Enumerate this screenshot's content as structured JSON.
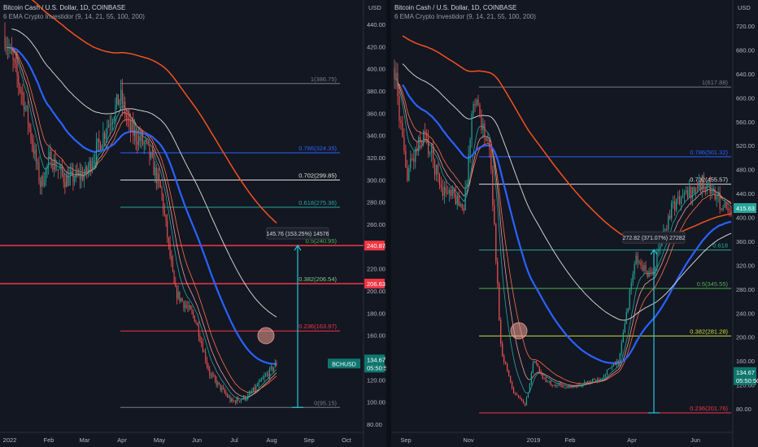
{
  "charts": [
    {
      "title": "Bitcoin Cash / U.S. Dollar, 1D, COINBASE",
      "indicator": "6 EMA Crypto Investidor (9, 14, 21, 55, 100, 200)",
      "currency": "USD",
      "y_ticks": [
        "440.00",
        "420.00",
        "400.00",
        "380.00",
        "360.00",
        "340.00",
        "320.00",
        "300.00",
        "280.00",
        "260.00",
        "240.00",
        "220.00",
        "200.00",
        "180.00",
        "160.00",
        "140.00",
        "120.00",
        "100.00",
        "80.00"
      ],
      "x_ticks": [
        "2022",
        "Feb",
        "Mar",
        "Apr",
        "May",
        "Jun",
        "Jul",
        "Aug",
        "Sep",
        "Oct"
      ],
      "fib_labels": [
        "1(386.75)",
        "0.786(324.35)",
        "0.702(299.85)",
        "0.618(275.36)",
        "0.5(240.95)",
        "0.382(206.54)",
        "0.236(163.97)",
        "0(95.15)"
      ],
      "price_badges": [
        "240.87",
        "206.63"
      ],
      "symbol_badge": "BCHUSD",
      "last_price": "134.67",
      "countdown": "05:50:56",
      "measure_label": "145.76 (153.25%) 14576"
    },
    {
      "title": "Bitcoin Cash / U.S. Dollar, 1D, COINBASE",
      "indicator": "6 EMA Crypto Investidor (9, 14, 21, 55, 100, 200)",
      "currency": "USD",
      "y_ticks": [
        "720.00",
        "680.00",
        "640.00",
        "600.00",
        "560.00",
        "520.00",
        "480.00",
        "440.00",
        "400.00",
        "360.00",
        "320.00",
        "280.00",
        "240.00",
        "200.00",
        "160.00",
        "120.00",
        "80.00"
      ],
      "x_ticks": [
        "Sep",
        "Nov",
        "2019",
        "Feb",
        "Apr",
        "Jun"
      ],
      "fib_labels": [
        "1(617.88)",
        "0.786(501.32)",
        "0.702(455.57)",
        "0.618",
        "0.5(345.55)",
        "0.382(281.28)",
        "0.236(201.76)",
        "0(73.22)"
      ],
      "price_badges": [
        "415.63"
      ],
      "last_price": "134.67",
      "countdown": "05:50:56",
      "measure_label": "272.82 (371.07%) 27282"
    }
  ],
  "chart_data": [
    {
      "type": "candlestick",
      "title": "Bitcoin Cash / U.S. Dollar, 1D, COINBASE",
      "ylim": [
        80,
        450
      ],
      "x_categories": [
        "2022",
        "Feb",
        "Mar",
        "Apr",
        "May",
        "Jun",
        "Jul",
        "Aug",
        "Sep",
        "Oct"
      ],
      "approx_close_path": [
        {
          "x": "2022",
          "y": 430
        },
        {
          "x": "Jan mid",
          "y": 370
        },
        {
          "x": "Jan end",
          "y": 295
        },
        {
          "x": "Feb",
          "y": 320
        },
        {
          "x": "Feb mid",
          "y": 300
        },
        {
          "x": "Mar",
          "y": 305
        },
        {
          "x": "Mar end",
          "y": 375
        },
        {
          "x": "Apr",
          "y": 345
        },
        {
          "x": "Apr mid",
          "y": 330
        },
        {
          "x": "May",
          "y": 290
        },
        {
          "x": "May mid",
          "y": 200
        },
        {
          "x": "Jun",
          "y": 175
        },
        {
          "x": "Jun mid",
          "y": 125
        },
        {
          "x": "Jul",
          "y": 100
        },
        {
          "x": "Jul mid",
          "y": 105
        },
        {
          "x": "Aug",
          "y": 134.67
        }
      ],
      "fibonacci": [
        {
          "level": "1",
          "price": 386.75
        },
        {
          "level": "0.786",
          "price": 324.35
        },
        {
          "level": "0.702",
          "price": 299.85
        },
        {
          "level": "0.618",
          "price": 275.36
        },
        {
          "level": "0.5",
          "price": 240.95
        },
        {
          "level": "0.382",
          "price": 206.54
        },
        {
          "level": "0.236",
          "price": 163.97
        },
        {
          "level": "0",
          "price": 95.15
        }
      ],
      "horizontal_lines": [
        240.87,
        206.63
      ],
      "last_price": 134.67,
      "measure": {
        "from": 95.15,
        "to": 240.91,
        "label": "145.76 (153.25%) 14576"
      }
    },
    {
      "type": "candlestick",
      "title": "Bitcoin Cash / U.S. Dollar, 1D, COINBASE",
      "ylim": [
        60,
        740
      ],
      "x_categories": [
        "Sep",
        "Nov",
        "2019",
        "Feb",
        "Apr",
        "Jun"
      ],
      "approx_close_path": [
        {
          "x": "Aug",
          "y": 650
        },
        {
          "x": "Sep",
          "y": 470
        },
        {
          "x": "Sep mid",
          "y": 540
        },
        {
          "x": "Oct",
          "y": 450
        },
        {
          "x": "Oct end",
          "y": 420
        },
        {
          "x": "Nov",
          "y": 610
        },
        {
          "x": "Nov mid",
          "y": 500
        },
        {
          "x": "Nov end",
          "y": 180
        },
        {
          "x": "Dec",
          "y": 110
        },
        {
          "x": "Dec mid",
          "y": 85
        },
        {
          "x": "2019",
          "y": 160
        },
        {
          "x": "Jan mid",
          "y": 125
        },
        {
          "x": "Feb",
          "y": 115
        },
        {
          "x": "Mar",
          "y": 130
        },
        {
          "x": "Mar end",
          "y": 160
        },
        {
          "x": "Apr",
          "y": 330
        },
        {
          "x": "May",
          "y": 300
        },
        {
          "x": "May end",
          "y": 420
        },
        {
          "x": "Jun",
          "y": 460
        },
        {
          "x": "Jun end",
          "y": 400
        }
      ],
      "fibonacci": [
        {
          "level": "1",
          "price": 617.88
        },
        {
          "level": "0.786",
          "price": 501.32
        },
        {
          "level": "0.702",
          "price": 455.57
        },
        {
          "level": "0.5",
          "price": 345.55
        },
        {
          "level": "0.382",
          "price": 281.28
        },
        {
          "level": "0.236",
          "price": 201.76
        },
        {
          "level": "0",
          "price": 73.22
        }
      ],
      "last_price": 134.67,
      "measure": {
        "from": 73.22,
        "to": 346.04,
        "label": "272.82 (371.07%) 27282"
      }
    }
  ]
}
